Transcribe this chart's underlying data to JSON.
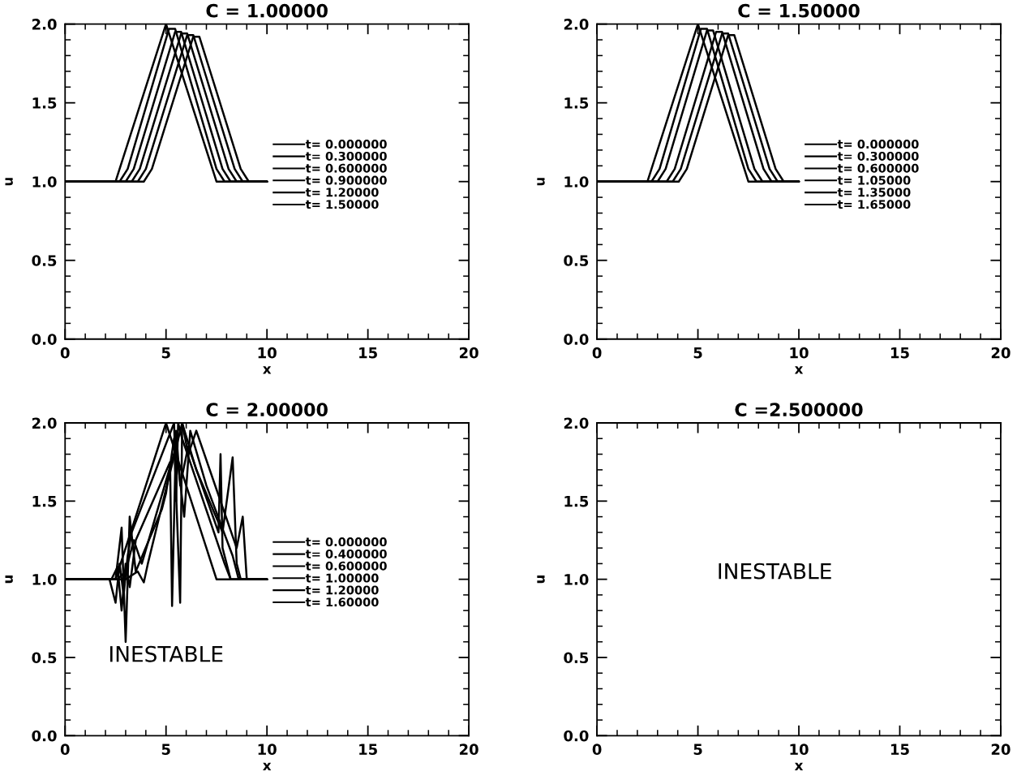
{
  "chart_data": [
    {
      "type": "line",
      "title": "C = 1.00000",
      "xlabel": "x",
      "ylabel": "u",
      "xlim": [
        0,
        20
      ],
      "ylim": [
        0,
        2.0
      ],
      "xticks": [
        0,
        5,
        10,
        15,
        20
      ],
      "yticks": [
        {
          "value": 0,
          "label": "0.0"
        },
        {
          "value": 0.5,
          "label": "0.5"
        },
        {
          "value": 1.0,
          "label": "1.0"
        },
        {
          "value": 1.5,
          "label": "1.5"
        },
        {
          "value": 2.0,
          "label": "2.0"
        }
      ],
      "legend": "center right",
      "grid": false,
      "series": [
        {
          "name": "t= 0.000000",
          "color": "#000000",
          "x": [
            0,
            2.5,
            5,
            7.5,
            10
          ],
          "values": [
            1,
            1,
            2.0,
            1,
            1
          ]
        },
        {
          "name": "t= 0.300000",
          "color": "#000000",
          "x": [
            0,
            2.7,
            3.1,
            5.15,
            5.45,
            7.5,
            7.9,
            10
          ],
          "values": [
            1,
            1,
            1.08,
            1.97,
            1.97,
            1.08,
            1,
            1
          ]
        },
        {
          "name": "t= 0.600000",
          "color": "#000000",
          "x": [
            0,
            3.0,
            3.4,
            5.45,
            5.75,
            7.8,
            8.2,
            10
          ],
          "values": [
            1,
            1,
            1.08,
            1.95,
            1.95,
            1.08,
            1,
            1
          ]
        },
        {
          "name": "t= 0.900000",
          "color": "#000000",
          "x": [
            0,
            3.3,
            3.7,
            5.75,
            6.05,
            8.1,
            8.5,
            10
          ],
          "values": [
            1,
            1,
            1.08,
            1.94,
            1.94,
            1.08,
            1,
            1
          ]
        },
        {
          "name": "t= 1.20000",
          "color": "#000000",
          "x": [
            0,
            3.6,
            4.0,
            6.05,
            6.35,
            8.4,
            8.8,
            10
          ],
          "values": [
            1,
            1,
            1.08,
            1.93,
            1.93,
            1.08,
            1,
            1
          ]
        },
        {
          "name": "t= 1.50000",
          "color": "#000000",
          "x": [
            0,
            3.9,
            4.3,
            6.35,
            6.65,
            8.7,
            9.1,
            10
          ],
          "values": [
            1,
            1,
            1.08,
            1.92,
            1.92,
            1.08,
            1,
            1
          ]
        }
      ]
    },
    {
      "type": "line",
      "title": "C = 1.50000",
      "xlabel": "x",
      "ylabel": "u",
      "xlim": [
        0,
        20
      ],
      "ylim": [
        0,
        2.0
      ],
      "xticks": [
        0,
        5,
        10,
        15,
        20
      ],
      "yticks": [
        {
          "value": 0,
          "label": "0.0"
        },
        {
          "value": 0.5,
          "label": "0.5"
        },
        {
          "value": 1.0,
          "label": "1.0"
        },
        {
          "value": 1.5,
          "label": "1.5"
        },
        {
          "value": 2.0,
          "label": "2.0"
        }
      ],
      "legend": "center right",
      "grid": false,
      "series": [
        {
          "name": "t= 0.000000",
          "color": "#000000",
          "x": [
            0,
            2.5,
            5,
            7.5,
            10
          ],
          "values": [
            1,
            1,
            2.0,
            1,
            1
          ]
        },
        {
          "name": "t= 0.300000",
          "color": "#000000",
          "x": [
            0,
            2.7,
            3.1,
            5.15,
            5.45,
            7.5,
            7.9,
            10
          ],
          "values": [
            1,
            1,
            1.08,
            1.97,
            1.97,
            1.08,
            1,
            1
          ]
        },
        {
          "name": "t= 0.600000",
          "color": "#000000",
          "x": [
            0,
            3.0,
            3.4,
            5.45,
            5.75,
            7.8,
            8.2,
            10
          ],
          "values": [
            1,
            1,
            1.08,
            1.96,
            1.96,
            1.08,
            1,
            1
          ]
        },
        {
          "name": "t= 1.05000",
          "color": "#000000",
          "x": [
            0,
            3.45,
            3.85,
            5.9,
            6.2,
            8.25,
            8.65,
            10
          ],
          "values": [
            1,
            1,
            1.08,
            1.95,
            1.95,
            1.08,
            1,
            1
          ]
        },
        {
          "name": "t= 1.35000",
          "color": "#000000",
          "x": [
            0,
            3.75,
            4.15,
            6.2,
            6.5,
            8.55,
            8.95,
            10
          ],
          "values": [
            1,
            1,
            1.08,
            1.94,
            1.94,
            1.08,
            1,
            1
          ]
        },
        {
          "name": "t= 1.65000",
          "color": "#000000",
          "x": [
            0,
            4.05,
            4.45,
            6.5,
            6.8,
            8.85,
            9.25,
            10
          ],
          "values": [
            1,
            1,
            1.08,
            1.93,
            1.93,
            1.08,
            1,
            1
          ]
        }
      ]
    },
    {
      "type": "line",
      "title": "C = 2.00000",
      "xlabel": "x",
      "ylabel": "u",
      "xlim": [
        0,
        20
      ],
      "ylim": [
        0,
        2.0
      ],
      "xticks": [
        0,
        5,
        10,
        15,
        20
      ],
      "yticks": [
        {
          "value": 0,
          "label": "0.0"
        },
        {
          "value": 0.5,
          "label": "0.5"
        },
        {
          "value": 1.0,
          "label": "1.0"
        },
        {
          "value": 1.5,
          "label": "1.5"
        },
        {
          "value": 2.0,
          "label": "2.0"
        }
      ],
      "legend": "center right",
      "grid": false,
      "annotations": [
        "INESTABLE"
      ],
      "series": [
        {
          "name": "t= 0.000000",
          "color": "#000000",
          "x": [
            0,
            2.5,
            5,
            7.5,
            10
          ],
          "values": [
            1,
            1,
            2.0,
            1,
            1
          ]
        },
        {
          "name": "t= 0.400000",
          "color": "#000000",
          "x": [
            0,
            2.2,
            2.5,
            2.7,
            2.9,
            3.1,
            3.3,
            5.4,
            5.5,
            5.6,
            5.8,
            7.9,
            8.2,
            8.4,
            10
          ],
          "values": [
            1,
            1,
            0.85,
            1.1,
            0.9,
            1.15,
            1.3,
            2.0,
            1.5,
            2.0,
            1.9,
            1.1,
            1.0,
            1.0,
            1
          ]
        },
        {
          "name": "t= 0.600000",
          "color": "#000000",
          "x": [
            0,
            2.3,
            2.6,
            2.8,
            3.0,
            3.2,
            3.5,
            5.2,
            5.3,
            5.5,
            5.7,
            6.1,
            7.6,
            7.7,
            7.8,
            8.2,
            10
          ],
          "values": [
            1,
            1,
            1.08,
            0.8,
            1.1,
            0.95,
            1.25,
            1.75,
            0.83,
            1.95,
            1.6,
            1.85,
            1.3,
            1.8,
            1.2,
            1.0,
            1
          ]
        },
        {
          "name": "t= 1.00000",
          "color": "#000000",
          "x": [
            0,
            2.5,
            2.8,
            3.0,
            3.2,
            3.5,
            4.8,
            5.0,
            5.4,
            5.7,
            5.8,
            6.5,
            7.8,
            8.3,
            8.5,
            8.7,
            10
          ],
          "values": [
            1,
            1,
            1.33,
            0.6,
            1.4,
            1.05,
            1.45,
            1.55,
            1.9,
            0.85,
            2.0,
            1.7,
            1.3,
            1.78,
            1.1,
            1.0,
            1
          ]
        },
        {
          "name": "t= 1.20000",
          "color": "#000000",
          "x": [
            0,
            2.6,
            3.0,
            3.4,
            3.8,
            5.5,
            5.9,
            6.2,
            7.0,
            8.3,
            8.6,
            9.0,
            10
          ],
          "values": [
            1,
            1,
            1.05,
            1.25,
            1.1,
            1.85,
            1.4,
            1.95,
            1.6,
            1.15,
            1.0,
            1.0,
            1
          ]
        },
        {
          "name": "t= 1.60000",
          "color": "#000000",
          "x": [
            0,
            3.0,
            3.6,
            3.9,
            4.1,
            5.8,
            6.1,
            6.5,
            8.5,
            8.8,
            9.0,
            9.3,
            10
          ],
          "values": [
            1,
            1,
            1.05,
            0.98,
            1.1,
            2.0,
            1.8,
            1.95,
            1.2,
            1.4,
            1.0,
            1.0,
            1
          ]
        }
      ]
    },
    {
      "type": "line",
      "title": "C =2.500000",
      "xlabel": "x",
      "ylabel": "u",
      "xlim": [
        0,
        20
      ],
      "ylim": [
        0,
        2.0
      ],
      "xticks": [
        0,
        5,
        10,
        15,
        20
      ],
      "yticks": [
        {
          "value": 0,
          "label": "0.0"
        },
        {
          "value": 0.5,
          "label": "0.5"
        },
        {
          "value": 1.0,
          "label": "1.0"
        },
        {
          "value": 1.5,
          "label": "1.5"
        },
        {
          "value": 2.0,
          "label": "2.0"
        }
      ],
      "grid": false,
      "annotations": [
        "INESTABLE"
      ]
    }
  ]
}
